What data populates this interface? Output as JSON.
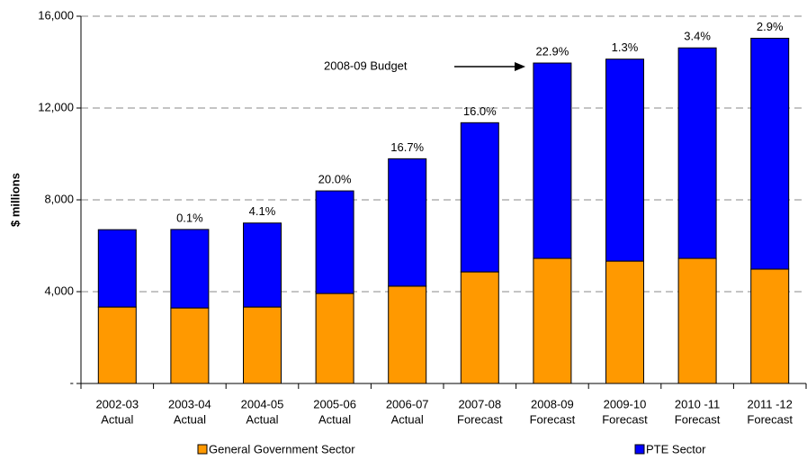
{
  "chart_data": {
    "type": "stacked_bar",
    "y_axis_label": "$ millions",
    "annotation": "2008-09 Budget",
    "categories": [
      [
        "2002-03",
        "Actual"
      ],
      [
        "2003-04",
        "Actual"
      ],
      [
        "2004-05",
        "Actual"
      ],
      [
        "2005-06",
        "Actual"
      ],
      [
        "2006-07",
        "Actual"
      ],
      [
        "2007-08",
        "Forecast"
      ],
      [
        "2008-09",
        "Forecast"
      ],
      [
        "2009-10",
        "Forecast"
      ],
      [
        "2010 -11",
        "Forecast"
      ],
      [
        "2011 -12",
        "Forecast"
      ]
    ],
    "series": [
      {
        "name": "General Government Sector",
        "color": "#ff9900",
        "values": [
          3330,
          3290,
          3330,
          3920,
          4240,
          4860,
          5450,
          5330,
          5450,
          4980
        ]
      },
      {
        "name": "PTE Sector",
        "color": "#0000ff",
        "values": [
          3370,
          3420,
          3660,
          4470,
          5550,
          6500,
          8510,
          8800,
          9170,
          10060
        ]
      }
    ],
    "top_labels": [
      null,
      "0.1%",
      "4.1%",
      "20.0%",
      "16.7%",
      "16.0%",
      "22.9%",
      "1.3%",
      "3.4%",
      "2.9%"
    ],
    "ylim": [
      0,
      16000
    ],
    "yticks": [
      {
        "value": 0,
        "label": "-"
      },
      {
        "value": 4000,
        "label": "4,000"
      },
      {
        "value": 8000,
        "label": "8,000"
      },
      {
        "value": 12000,
        "label": "12,000"
      },
      {
        "value": 16000,
        "label": "16,000"
      }
    ],
    "grid": true
  }
}
